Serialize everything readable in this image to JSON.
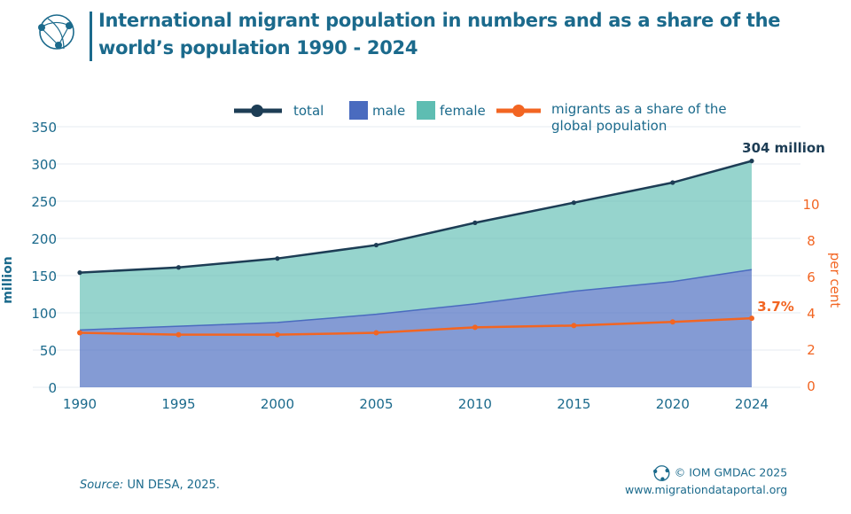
{
  "header": {
    "title": "International migrant population in numbers and as a share of the world’s population 1990 - 2024"
  },
  "footer": {
    "source_label": "Source:",
    "source_text": " UN DESA, 2025.",
    "copyright": "© IOM GMDAC 2025",
    "url": "www.migrationdataportal.org"
  },
  "chart_data": {
    "type": "area",
    "title": "International migrant population in numbers and as a share of the world’s population 1990 - 2024",
    "categories": [
      "1990",
      "1995",
      "2000",
      "2005",
      "2010",
      "2015",
      "2020",
      "2024"
    ],
    "x": [
      1990,
      1995,
      2000,
      2005,
      2010,
      2015,
      2020,
      2024
    ],
    "series": [
      {
        "name": "total",
        "type": "line",
        "axis": "left",
        "color": "#1d3d55",
        "values": [
          154,
          161,
          173,
          191,
          221,
          248,
          275,
          304
        ]
      },
      {
        "name": "male",
        "type": "area",
        "axis": "left",
        "color": "#4a6bbf",
        "values": [
          77,
          82,
          87,
          98,
          112,
          129,
          142,
          158
        ]
      },
      {
        "name": "female",
        "type": "area",
        "axis": "left",
        "color": "#5ebdb2",
        "values": [
          77,
          79,
          86,
          93,
          109,
          119,
          133,
          146
        ]
      },
      {
        "name": "migrants as a share of the global population",
        "type": "line",
        "axis": "right",
        "color": "#f26522",
        "values": [
          2.9,
          2.8,
          2.8,
          2.9,
          3.2,
          3.3,
          3.5,
          3.7
        ]
      }
    ],
    "ylabel": "million",
    "ylim": [
      0,
      350
    ],
    "yticks": [
      "0",
      "50",
      "100",
      "150",
      "200",
      "250",
      "300",
      "350"
    ],
    "y2label": "per cent",
    "y2ticks": [
      "0",
      "2",
      "4",
      "6",
      "8",
      "10"
    ],
    "annotations": {
      "total_end": "304 million",
      "share_end": "3.7%"
    },
    "legend_position": "top",
    "grid": true
  }
}
